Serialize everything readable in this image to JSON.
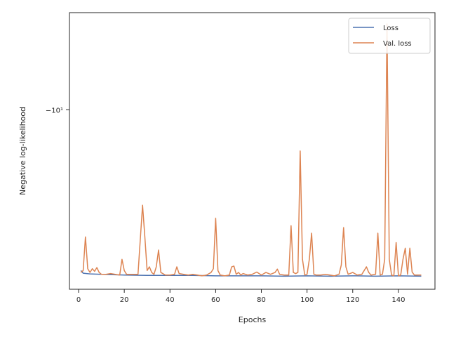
{
  "chart_data": {
    "type": "line",
    "xlabel": "Epochs",
    "ylabel": "Negative log-likelihood",
    "xlim": [
      -4,
      156
    ],
    "x_ticks": [
      0,
      20,
      40,
      60,
      80,
      100,
      120,
      140
    ],
    "x_tick_labels": [
      "0",
      "20",
      "40",
      "60",
      "80",
      "100",
      "120",
      "140"
    ],
    "y_scale": "symlog",
    "ylim": [
      -9.52,
      -10.26
    ],
    "y_ticks": [
      -10
    ],
    "y_tick_labels": [
      "−10¹"
    ],
    "grid": false,
    "legend_position": "top-right",
    "series": [
      {
        "name": "Loss",
        "color": "#4c72b0",
        "points": [
          [
            1,
            -9.57
          ],
          [
            2,
            -9.563
          ],
          [
            5,
            -9.561
          ],
          [
            10,
            -9.56
          ],
          [
            15,
            -9.559
          ],
          [
            20,
            -9.558
          ],
          [
            30,
            -9.557
          ],
          [
            40,
            -9.557
          ],
          [
            50,
            -9.557
          ],
          [
            60,
            -9.556
          ],
          [
            70,
            -9.556
          ],
          [
            80,
            -9.556
          ],
          [
            90,
            -9.555
          ],
          [
            100,
            -9.556
          ],
          [
            110,
            -9.555
          ],
          [
            120,
            -9.556
          ],
          [
            130,
            -9.555
          ],
          [
            140,
            -9.556
          ],
          [
            150,
            -9.555
          ]
        ]
      },
      {
        "name": "Val. loss",
        "color": "#dd8452",
        "points": [
          [
            1,
            -9.565
          ],
          [
            2,
            -9.57
          ],
          [
            3,
            -9.66
          ],
          [
            4,
            -9.575
          ],
          [
            5,
            -9.565
          ],
          [
            6,
            -9.575
          ],
          [
            7,
            -9.568
          ],
          [
            8,
            -9.578
          ],
          [
            9,
            -9.565
          ],
          [
            10,
            -9.56
          ],
          [
            12,
            -9.56
          ],
          [
            14,
            -9.562
          ],
          [
            16,
            -9.56
          ],
          [
            18,
            -9.558
          ],
          [
            19,
            -9.6
          ],
          [
            20,
            -9.57
          ],
          [
            21,
            -9.56
          ],
          [
            23,
            -9.56
          ],
          [
            25,
            -9.56
          ],
          [
            26,
            -9.56
          ],
          [
            28,
            -9.745
          ],
          [
            29,
            -9.66
          ],
          [
            30,
            -9.57
          ],
          [
            31,
            -9.58
          ],
          [
            32,
            -9.565
          ],
          [
            33,
            -9.56
          ],
          [
            34,
            -9.58
          ],
          [
            35,
            -9.625
          ],
          [
            36,
            -9.565
          ],
          [
            38,
            -9.558
          ],
          [
            40,
            -9.558
          ],
          [
            42,
            -9.56
          ],
          [
            43,
            -9.58
          ],
          [
            44,
            -9.562
          ],
          [
            46,
            -9.56
          ],
          [
            48,
            -9.558
          ],
          [
            50,
            -9.56
          ],
          [
            52,
            -9.558
          ],
          [
            54,
            -9.556
          ],
          [
            56,
            -9.558
          ],
          [
            58,
            -9.565
          ],
          [
            59,
            -9.575
          ],
          [
            60,
            -9.71
          ],
          [
            61,
            -9.57
          ],
          [
            62,
            -9.558
          ],
          [
            64,
            -9.556
          ],
          [
            66,
            -9.558
          ],
          [
            67,
            -9.58
          ],
          [
            68,
            -9.582
          ],
          [
            69,
            -9.56
          ],
          [
            70,
            -9.565
          ],
          [
            71,
            -9.558
          ],
          [
            72,
            -9.562
          ],
          [
            74,
            -9.558
          ],
          [
            76,
            -9.56
          ],
          [
            78,
            -9.566
          ],
          [
            80,
            -9.558
          ],
          [
            82,
            -9.565
          ],
          [
            84,
            -9.56
          ],
          [
            86,
            -9.565
          ],
          [
            87,
            -9.574
          ],
          [
            88,
            -9.56
          ],
          [
            90,
            -9.558
          ],
          [
            92,
            -9.558
          ],
          [
            93,
            -9.69
          ],
          [
            94,
            -9.565
          ],
          [
            95,
            -9.562
          ],
          [
            96,
            -9.565
          ],
          [
            97,
            -9.89
          ],
          [
            98,
            -9.6
          ],
          [
            99,
            -9.558
          ],
          [
            100,
            -9.56
          ],
          [
            101,
            -9.6
          ],
          [
            102,
            -9.67
          ],
          [
            103,
            -9.56
          ],
          [
            104,
            -9.558
          ],
          [
            106,
            -9.558
          ],
          [
            108,
            -9.56
          ],
          [
            110,
            -9.558
          ],
          [
            112,
            -9.556
          ],
          [
            114,
            -9.56
          ],
          [
            115,
            -9.585
          ],
          [
            116,
            -9.685
          ],
          [
            117,
            -9.58
          ],
          [
            118,
            -9.56
          ],
          [
            120,
            -9.565
          ],
          [
            122,
            -9.558
          ],
          [
            124,
            -9.56
          ],
          [
            126,
            -9.58
          ],
          [
            127,
            -9.565
          ],
          [
            128,
            -9.558
          ],
          [
            130,
            -9.56
          ],
          [
            131,
            -9.67
          ],
          [
            132,
            -9.558
          ],
          [
            133,
            -9.56
          ],
          [
            134,
            -9.6
          ],
          [
            135,
            -10.23
          ],
          [
            136,
            -9.6
          ],
          [
            137,
            -9.558
          ],
          [
            138,
            -9.556
          ],
          [
            139,
            -9.645
          ],
          [
            140,
            -9.556
          ],
          [
            141,
            -9.558
          ],
          [
            142,
            -9.6
          ],
          [
            143,
            -9.63
          ],
          [
            144,
            -9.56
          ],
          [
            145,
            -9.63
          ],
          [
            146,
            -9.566
          ],
          [
            147,
            -9.558
          ],
          [
            148,
            -9.558
          ],
          [
            150,
            -9.558
          ]
        ]
      }
    ]
  }
}
